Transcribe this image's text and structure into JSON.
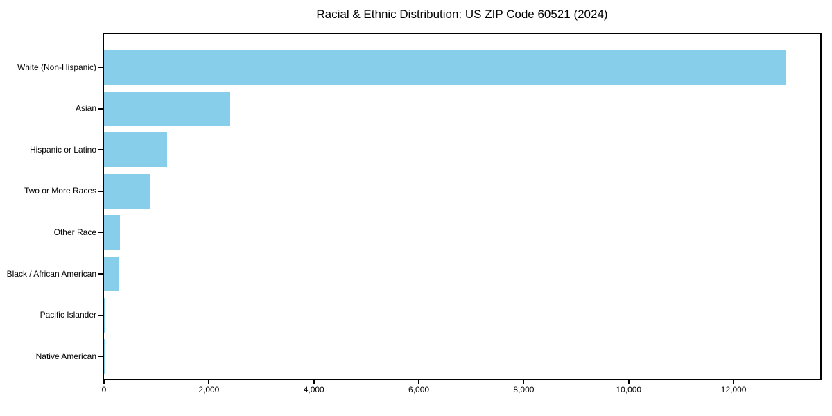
{
  "title": "Racial & Ethnic Distribution: US ZIP Code 60521 (2024)",
  "colors": {
    "bar": "#87CEEB",
    "axis": "#000000",
    "text": "#000000",
    "background": "#ffffff"
  },
  "chart_data": {
    "type": "bar",
    "orientation": "horizontal",
    "title": "Racial & Ethnic Distribution: US ZIP Code 60521 (2024)",
    "categories": [
      "White (Non-Hispanic)",
      "Asian",
      "Hispanic or Latino",
      "Two or More Races",
      "Other Race",
      "Black / African American",
      "Pacific Islander",
      "Native American"
    ],
    "values": [
      13000,
      2400,
      1200,
      880,
      300,
      280,
      15,
      8
    ],
    "xlabel": "",
    "ylabel": "",
    "xlim": [
      0,
      13650
    ],
    "x_ticks": [
      0,
      2000,
      4000,
      6000,
      8000,
      10000,
      12000
    ],
    "x_tick_labels": [
      "0",
      "2,000",
      "4,000",
      "6,000",
      "8,000",
      "10,000",
      "12,000"
    ],
    "grid": false,
    "legend": null,
    "bar_color": "#87CEEB"
  }
}
